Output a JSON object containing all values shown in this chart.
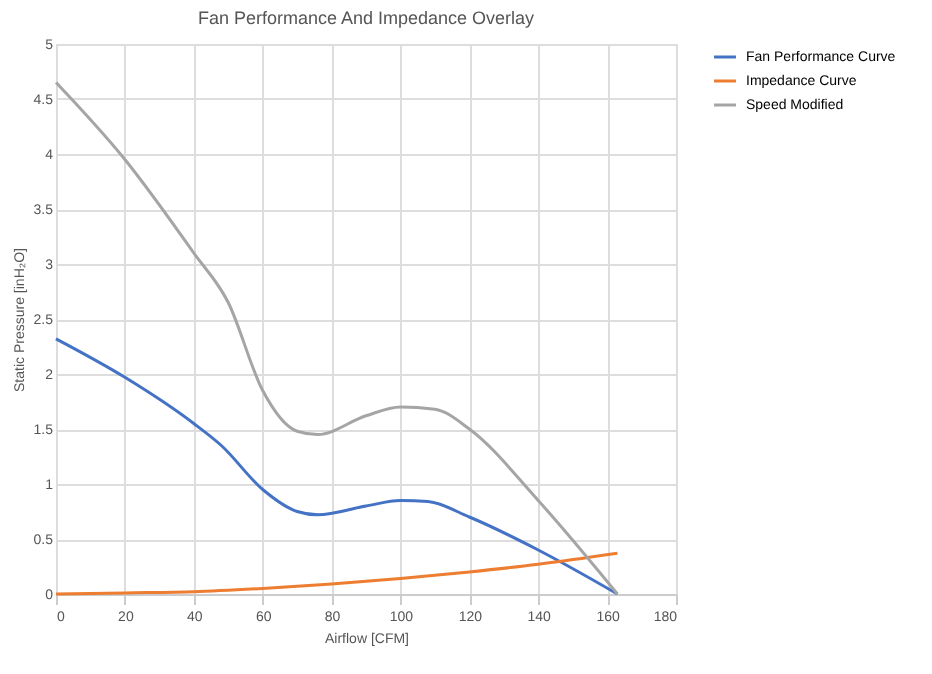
{
  "chart_data": {
    "type": "line",
    "title": "Fan Performance And Impedance Overlay",
    "xlabel": "Airflow [CFM]",
    "ylabel": "Static Pressure [inH₂O]",
    "xlim": [
      0,
      180
    ],
    "xticks": [
      0,
      20,
      40,
      60,
      80,
      100,
      120,
      140,
      160,
      180
    ],
    "ylim": [
      0,
      5
    ],
    "yticks": [
      0,
      0.5,
      1,
      1.5,
      2,
      2.5,
      3,
      3.5,
      4,
      4.5,
      5
    ],
    "grid": true,
    "legend": "right",
    "marker": "none",
    "line_style": "solid",
    "series": [
      {
        "name": "Fan Performance Curve",
        "color": "#4472c4",
        "x": [
          0,
          20,
          40,
          48,
          60,
          70,
          76,
          90,
          100,
          108,
          120,
          140,
          163
        ],
        "values": [
          2.32,
          1.97,
          1.55,
          1.35,
          0.95,
          0.75,
          0.72,
          0.8,
          0.85,
          0.84,
          0.7,
          0.4,
          0
        ]
      },
      {
        "name": "Impedance Curve",
        "color": "#ed7d31",
        "x": [
          0,
          20,
          40,
          60,
          80,
          100,
          120,
          140,
          163
        ],
        "values": [
          0,
          0.01,
          0.02,
          0.05,
          0.09,
          0.14,
          0.2,
          0.27,
          0.37
        ]
      },
      {
        "name": "Speed Modified",
        "color": "#a5a5a5",
        "x": [
          0,
          20,
          40,
          50,
          60,
          70,
          76,
          90,
          100,
          110,
          120,
          140,
          163
        ],
        "values": [
          4.65,
          3.95,
          3.1,
          2.65,
          1.85,
          1.48,
          1.45,
          1.62,
          1.7,
          1.68,
          1.5,
          0.85,
          0
        ]
      }
    ]
  }
}
